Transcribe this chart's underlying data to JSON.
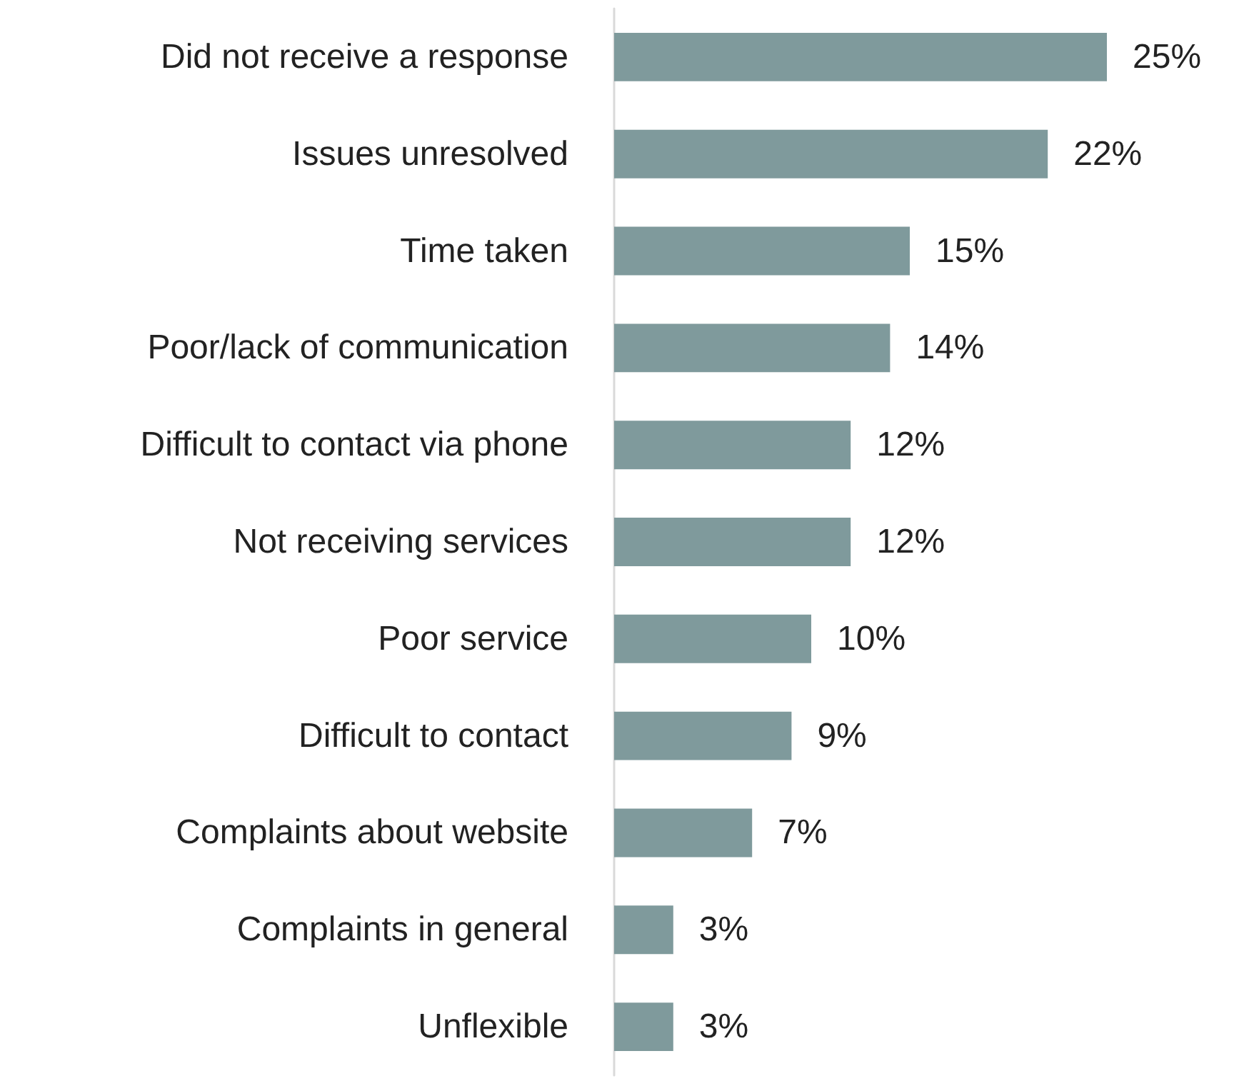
{
  "chart_data": {
    "type": "bar",
    "orientation": "horizontal",
    "tick_labels": "y",
    "categories": [
      "Did not receive a response",
      "Issues unresolved",
      "Time taken",
      "Poor/lack of communication",
      "Difficult to contact via phone",
      "Not receiving services",
      "Poor service",
      "Difficult to contact",
      "Complaints about website",
      "Complaints in general",
      "Unflexible"
    ],
    "values": [
      25,
      22,
      15,
      14,
      12,
      12,
      10,
      9,
      7,
      3,
      3
    ],
    "value_labels": [
      "25%",
      "22%",
      "15%",
      "14%",
      "12%",
      "12%",
      "10%",
      "9%",
      "7%",
      "3%",
      "3%"
    ],
    "color": "#7f9a9c"
  }
}
